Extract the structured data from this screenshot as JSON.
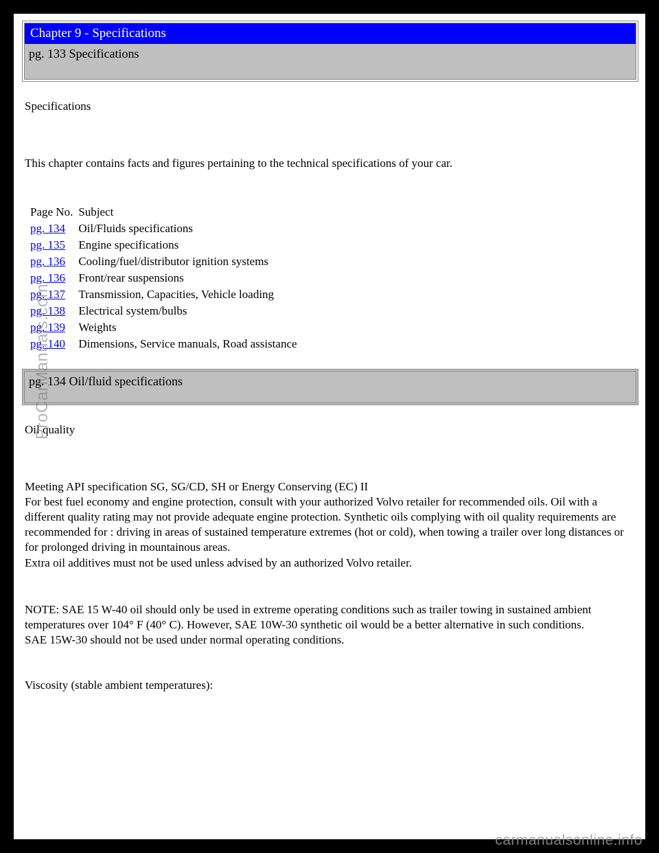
{
  "chapter": {
    "title": "Chapter 9 - Specifications"
  },
  "section133": {
    "bar": "pg. 133 Specifications",
    "heading": "Specifications",
    "intro": "This chapter contains facts and figures pertaining to the technical specifications of your car."
  },
  "toc": {
    "header_page": "Page No.",
    "header_subject": "Subject",
    "rows": [
      {
        "page": "pg. 134",
        "subject": "Oil/Fluids specifications"
      },
      {
        "page": "pg. 135",
        "subject": "Engine specifications"
      },
      {
        "page": "pg. 136",
        "subject": "Cooling/fuel/distributor ignition systems"
      },
      {
        "page": "pg. 136",
        "subject": "Front/rear suspensions"
      },
      {
        "page": "pg. 137",
        "subject": "Transmission, Capacities, Vehicle loading"
      },
      {
        "page": "pg. 138",
        "subject": "Electrical system/bulbs"
      },
      {
        "page": "pg. 139",
        "subject": "Weights"
      },
      {
        "page": "pg. 140",
        "subject": "Dimensions, Service manuals, Road assistance"
      }
    ]
  },
  "section134": {
    "bar": "pg. 134 Oil/fluid specifications",
    "heading": "Oil quality",
    "para1_line1": "Meeting API specification SG, SG/CD, SH or Energy Conserving (EC) II",
    "para1_rest": "For best fuel economy and engine protection, consult with your authorized Volvo retailer for recommended oils. Oil with a different quality rating may not provide adequate engine protection. Synthetic oils complying with oil quality requirements are recommended for : driving in areas of sustained temperature extremes (hot or cold), when towing a trailer over long distances or for prolonged driving in mountainous areas.",
    "para1_last": "Extra oil additives must not be used unless advised by an authorized Volvo retailer.",
    "note_line1": "NOTE: SAE 15 W-40 oil should only be used in extreme operating conditions such as trailer towing in sustained ambient temperatures over 104° F (40° C). However, SAE 10W-30 synthetic oil would be a better alternative in such conditions.",
    "note_line2": "SAE 15W-30 should not be used under normal operating conditions.",
    "viscosity": "Viscosity (stable ambient temperatures):"
  },
  "watermarks": {
    "vertical": "ProCarManuals.com",
    "footer": "carmanualsonline.info"
  },
  "colors": {
    "page_bg": "#ffffff",
    "outer_bg": "#000000",
    "header_bg": "#0000ff",
    "header_text": "#ffffff",
    "section_bar_bg": "#bfbfbf",
    "link_color": "#0000ee",
    "watermark_color": "rgba(120,120,120,0.55)"
  }
}
